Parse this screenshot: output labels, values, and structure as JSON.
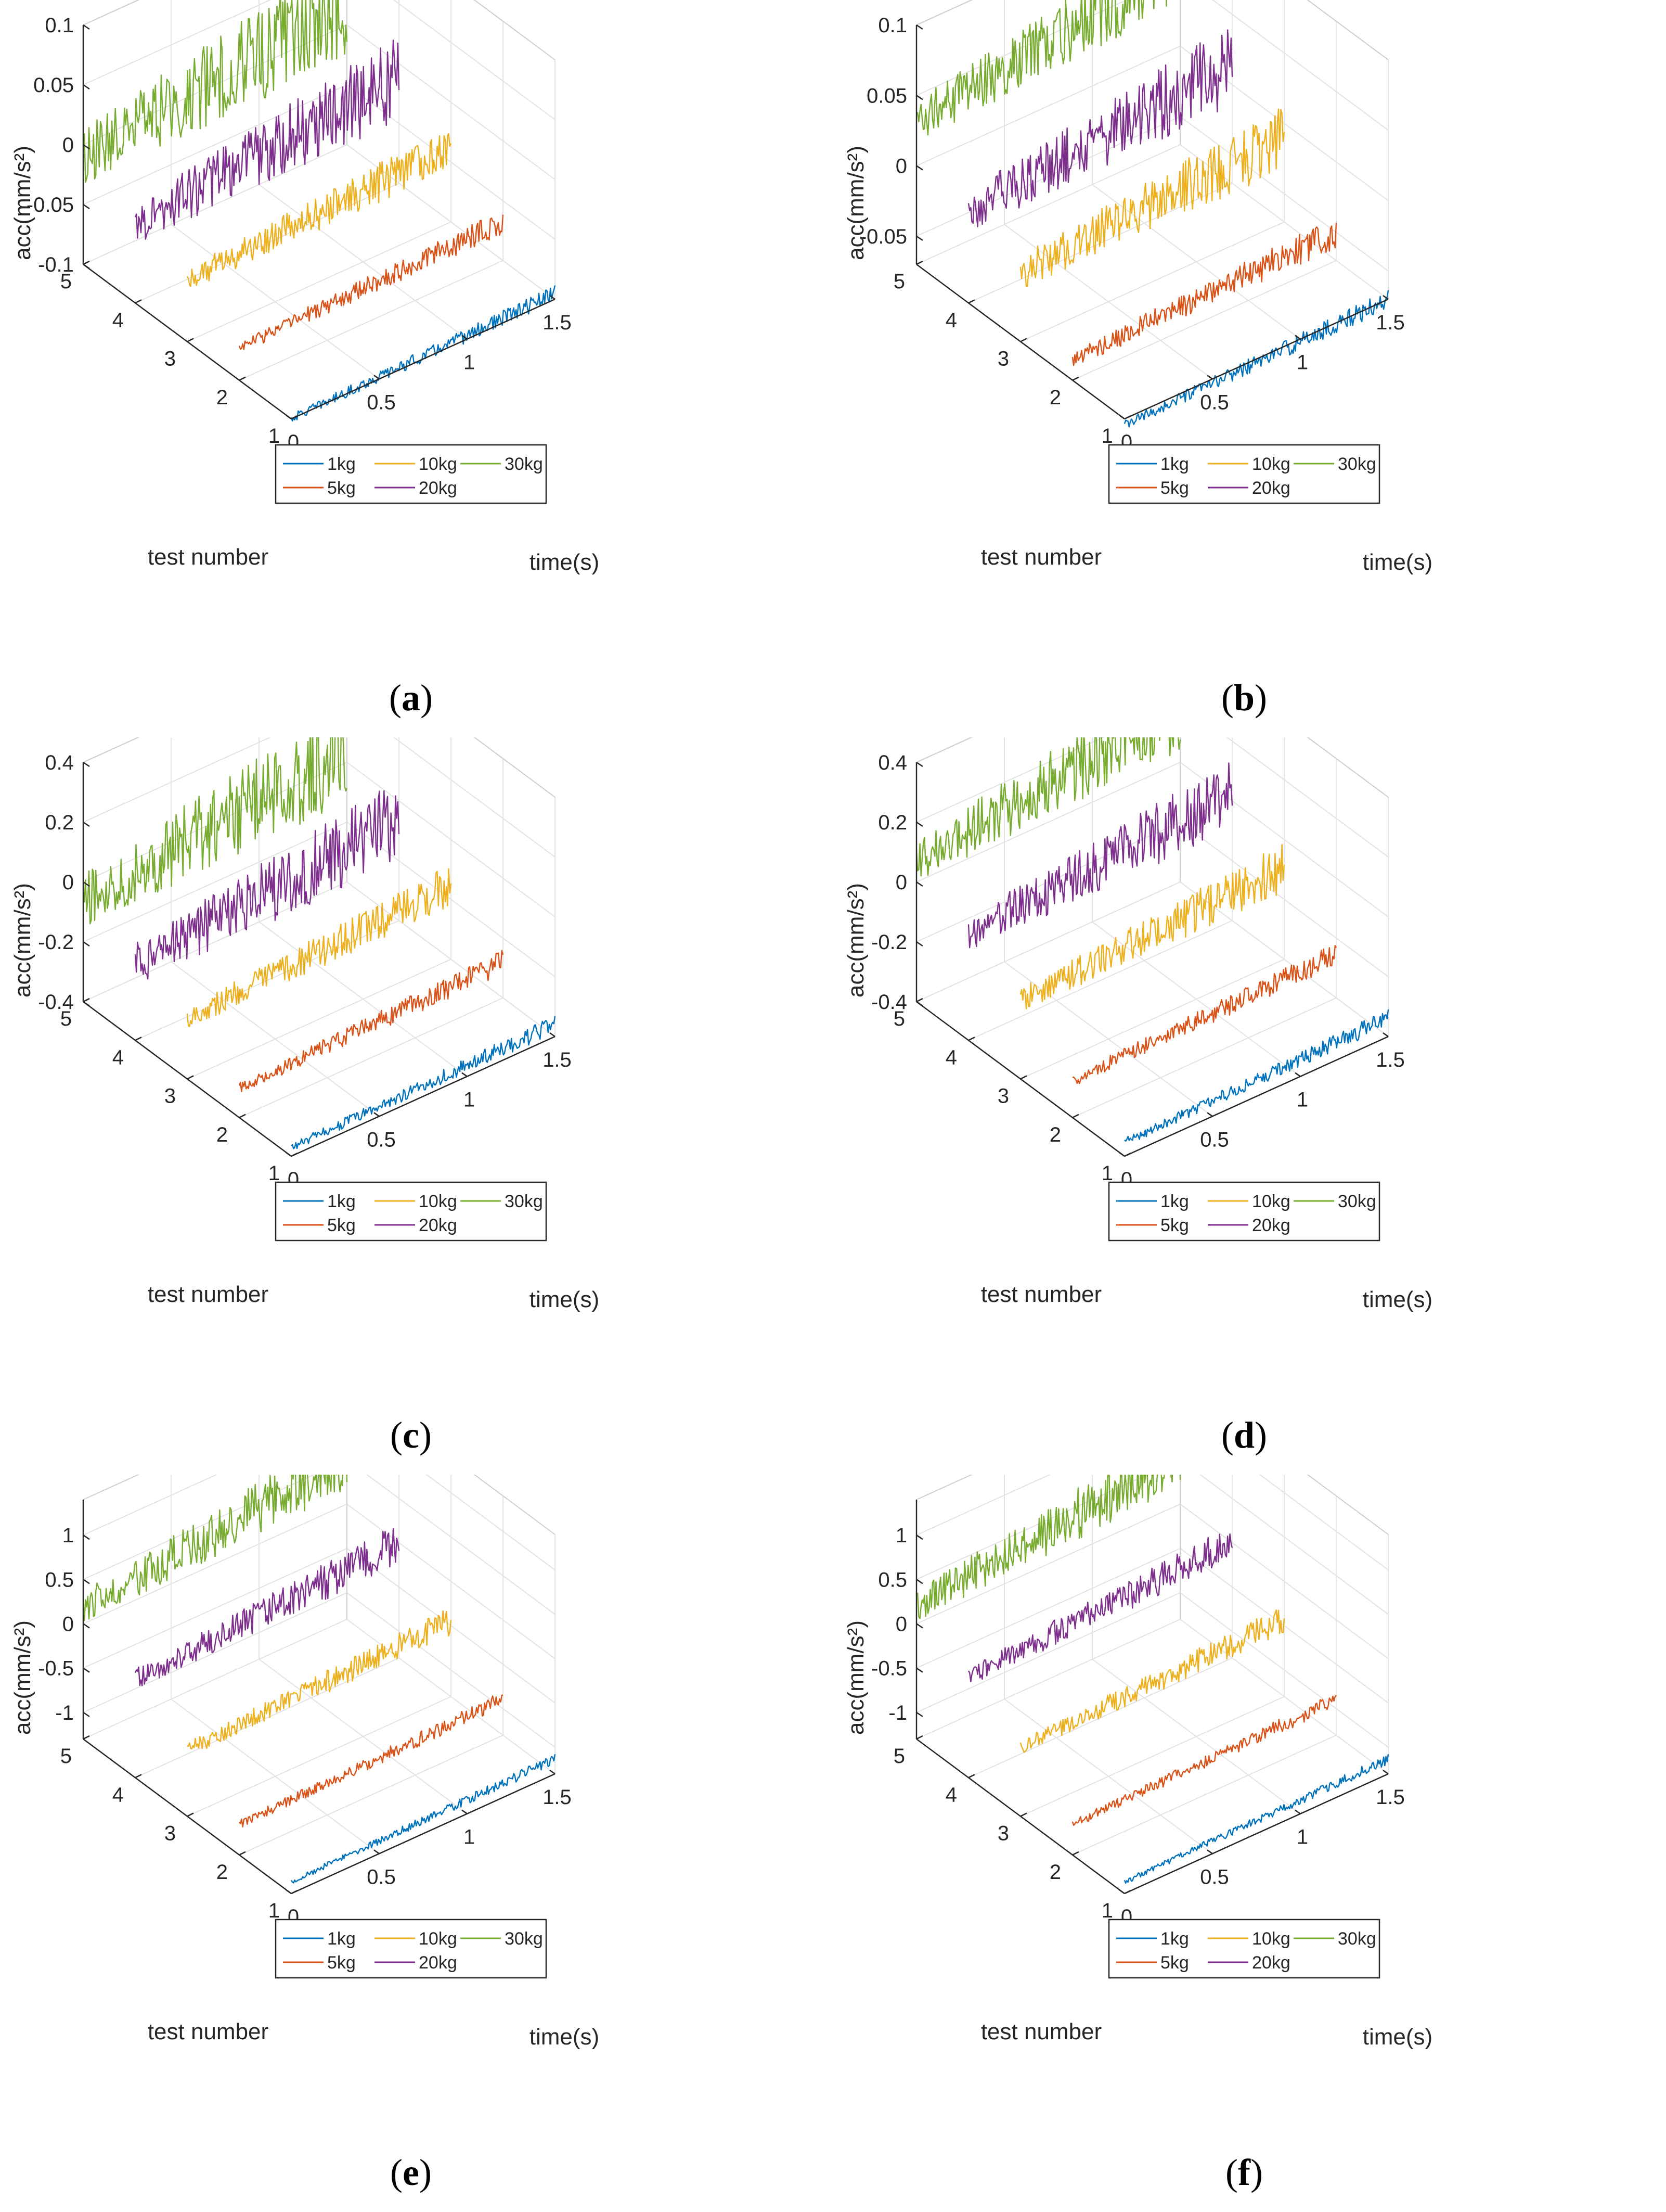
{
  "chart_data": [
    {
      "type": "line",
      "panel_label": "a",
      "xlabel": "time(s)",
      "ylabel": "test number",
      "zlabel": "acc(mm/s²)",
      "xlim": [
        0,
        1.5
      ],
      "ylim": [
        1,
        5
      ],
      "zlim": [
        -0.1,
        0.1
      ],
      "x_ticks": [
        "0",
        "0.5",
        "1",
        "1.5"
      ],
      "y_ticks": [
        "1",
        "2",
        "3",
        "4",
        "5"
      ],
      "z_ticks": [
        "-0.1",
        "-0.05",
        "0",
        "0.05",
        "0.1"
      ],
      "grid": true,
      "legend_position": "bottom-center",
      "series": [
        {
          "name": "1kg",
          "color": "#0072BD",
          "y": 1,
          "amp": 0.006,
          "min": -0.11,
          "max": -0.085
        },
        {
          "name": "5kg",
          "color": "#D95319",
          "y": 2,
          "amp": 0.009,
          "min": -0.085,
          "max": -0.055
        },
        {
          "name": "10kg",
          "color": "#EDB120",
          "y": 3,
          "amp": 0.016,
          "min": -0.075,
          "max": -0.01
        },
        {
          "name": "20kg",
          "color": "#7E2F8E",
          "y": 4,
          "amp": 0.03,
          "min": -0.085,
          "max": 0.04
        },
        {
          "name": "30kg",
          "color": "#77AC30",
          "y": 5,
          "amp": 0.04,
          "min": -0.08,
          "max": 0.09
        }
      ]
    },
    {
      "type": "line",
      "panel_label": "b",
      "xlabel": "time(s)",
      "ylabel": "test number",
      "zlabel": "acc(mm/s²)",
      "xlim": [
        0,
        1.5
      ],
      "ylim": [
        1,
        5
      ],
      "zlim": [
        -0.07,
        0.1
      ],
      "x_ticks": [
        "0",
        "0.5",
        "1",
        "1.5"
      ],
      "y_ticks": [
        "1",
        "2",
        "3",
        "4",
        "5"
      ],
      "z_ticks": [
        "-0.05",
        "0",
        "0.05",
        "0.1"
      ],
      "grid": true,
      "legend_position": "bottom-center",
      "series": [
        {
          "name": "1kg",
          "color": "#0072BD",
          "y": 1,
          "amp": 0.006,
          "min": -0.085,
          "max": -0.06
        },
        {
          "name": "5kg",
          "color": "#D95319",
          "y": 2,
          "amp": 0.01,
          "min": -0.07,
          "max": -0.035
        },
        {
          "name": "10kg",
          "color": "#EDB120",
          "y": 3,
          "amp": 0.02,
          "min": -0.05,
          "max": 0.02
        },
        {
          "name": "20kg",
          "color": "#7E2F8E",
          "y": 4,
          "amp": 0.025,
          "min": -0.05,
          "max": 0.06
        },
        {
          "name": "30kg",
          "color": "#77AC30",
          "y": 5,
          "amp": 0.025,
          "min": -0.03,
          "max": 0.12
        }
      ]
    },
    {
      "type": "line",
      "panel_label": "c",
      "xlabel": "time(s)",
      "ylabel": "test number",
      "zlabel": "acc(mm/s²)",
      "xlim": [
        0,
        1.5
      ],
      "ylim": [
        1,
        5
      ],
      "zlim": [
        -0.4,
        0.4
      ],
      "x_ticks": [
        "0",
        "0.5",
        "1",
        "1.5"
      ],
      "y_ticks": [
        "1",
        "2",
        "3",
        "4",
        "5"
      ],
      "z_ticks": [
        "-0.4",
        "-0.2",
        "0",
        "0.2",
        "0.4"
      ],
      "grid": true,
      "legend_position": "bottom-center",
      "series": [
        {
          "name": "1kg",
          "color": "#0072BD",
          "y": 1,
          "amp": 0.025,
          "min": -0.4,
          "max": -0.33
        },
        {
          "name": "5kg",
          "color": "#D95319",
          "y": 2,
          "amp": 0.035,
          "min": -0.36,
          "max": -0.22
        },
        {
          "name": "10kg",
          "color": "#EDB120",
          "y": 3,
          "amp": 0.06,
          "min": -0.3,
          "max": -0.05
        },
        {
          "name": "20kg",
          "color": "#7E2F8E",
          "y": 4,
          "amp": 0.12,
          "min": -0.33,
          "max": 0.12
        },
        {
          "name": "30kg",
          "color": "#77AC30",
          "y": 5,
          "amp": 0.15,
          "min": -0.32,
          "max": 0.3
        }
      ]
    },
    {
      "type": "line",
      "panel_label": "d",
      "xlabel": "time(s)",
      "ylabel": "test number",
      "zlabel": "acc(mm/s²)",
      "xlim": [
        0,
        1.5
      ],
      "ylim": [
        1,
        5
      ],
      "zlim": [
        -0.4,
        0.4
      ],
      "x_ticks": [
        "0",
        "0.5",
        "1",
        "1.5"
      ],
      "y_ticks": [
        "1",
        "2",
        "3",
        "4",
        "5"
      ],
      "z_ticks": [
        "-0.4",
        "-0.2",
        "0",
        "0.2",
        "0.4"
      ],
      "grid": true,
      "legend_position": "bottom-center",
      "series": [
        {
          "name": "1kg",
          "color": "#0072BD",
          "y": 1,
          "amp": 0.025,
          "min": -0.39,
          "max": -0.3
        },
        {
          "name": "5kg",
          "color": "#D95319",
          "y": 2,
          "amp": 0.035,
          "min": -0.33,
          "max": -0.2
        },
        {
          "name": "10kg",
          "color": "#EDB120",
          "y": 3,
          "amp": 0.07,
          "min": -0.25,
          "max": 0.02
        },
        {
          "name": "20kg",
          "color": "#7E2F8E",
          "y": 4,
          "amp": 0.1,
          "min": -0.2,
          "max": 0.18
        },
        {
          "name": "30kg",
          "color": "#77AC30",
          "y": 5,
          "amp": 0.12,
          "min": -0.2,
          "max": 0.45
        }
      ]
    },
    {
      "type": "line",
      "panel_label": "e",
      "xlabel": "time(s)",
      "ylabel": "test number",
      "zlabel": "acc(mm/s²)",
      "xlim": [
        0,
        1.5
      ],
      "ylim": [
        1,
        5
      ],
      "zlim": [
        -1.3,
        1.4
      ],
      "x_ticks": [
        "0",
        "0.5",
        "1",
        "1.5"
      ],
      "y_ticks": [
        "1",
        "2",
        "3",
        "4",
        "5"
      ],
      "z_ticks": [
        "-1",
        "-0.5",
        "0",
        "0.5",
        "1"
      ],
      "grid": true,
      "legend_position": "bottom-center",
      "series": [
        {
          "name": "1kg",
          "color": "#0072BD",
          "y": 1,
          "amp": 0.05,
          "min": -1.25,
          "max": -1.05
        },
        {
          "name": "5kg",
          "color": "#D95319",
          "y": 2,
          "amp": 0.08,
          "min": -1.1,
          "max": -0.75
        },
        {
          "name": "10kg",
          "color": "#EDB120",
          "y": 3,
          "amp": 0.14,
          "min": -0.8,
          "max": -0.2
        },
        {
          "name": "20kg",
          "color": "#7E2F8E",
          "y": 4,
          "amp": 0.2,
          "min": -0.6,
          "max": 0.4
        },
        {
          "name": "30kg",
          "color": "#77AC30",
          "y": 5,
          "amp": 0.3,
          "min": -0.6,
          "max": 1.3
        }
      ]
    },
    {
      "type": "line",
      "panel_label": "f",
      "xlabel": "time(s)",
      "ylabel": "test number",
      "zlabel": "acc(mm/s²)",
      "xlim": [
        0,
        1.5
      ],
      "ylim": [
        1,
        5
      ],
      "zlim": [
        -1.3,
        1.4
      ],
      "x_ticks": [
        "0",
        "0.5",
        "1",
        "1.5"
      ],
      "y_ticks": [
        "1",
        "2",
        "3",
        "4",
        "5"
      ],
      "z_ticks": [
        "-1",
        "-0.5",
        "0",
        "0.5",
        "1"
      ],
      "grid": true,
      "legend_position": "bottom-center",
      "series": [
        {
          "name": "1kg",
          "color": "#0072BD",
          "y": 1,
          "amp": 0.05,
          "min": -1.25,
          "max": -1.05
        },
        {
          "name": "5kg",
          "color": "#D95319",
          "y": 2,
          "amp": 0.08,
          "min": -1.1,
          "max": -0.75
        },
        {
          "name": "10kg",
          "color": "#EDB120",
          "y": 3,
          "amp": 0.14,
          "min": -0.75,
          "max": -0.2
        },
        {
          "name": "20kg",
          "color": "#7E2F8E",
          "y": 4,
          "amp": 0.18,
          "min": -0.6,
          "max": 0.45
        },
        {
          "name": "30kg",
          "color": "#77AC30",
          "y": 5,
          "amp": 0.3,
          "min": -0.6,
          "max": 1.35
        }
      ]
    }
  ]
}
